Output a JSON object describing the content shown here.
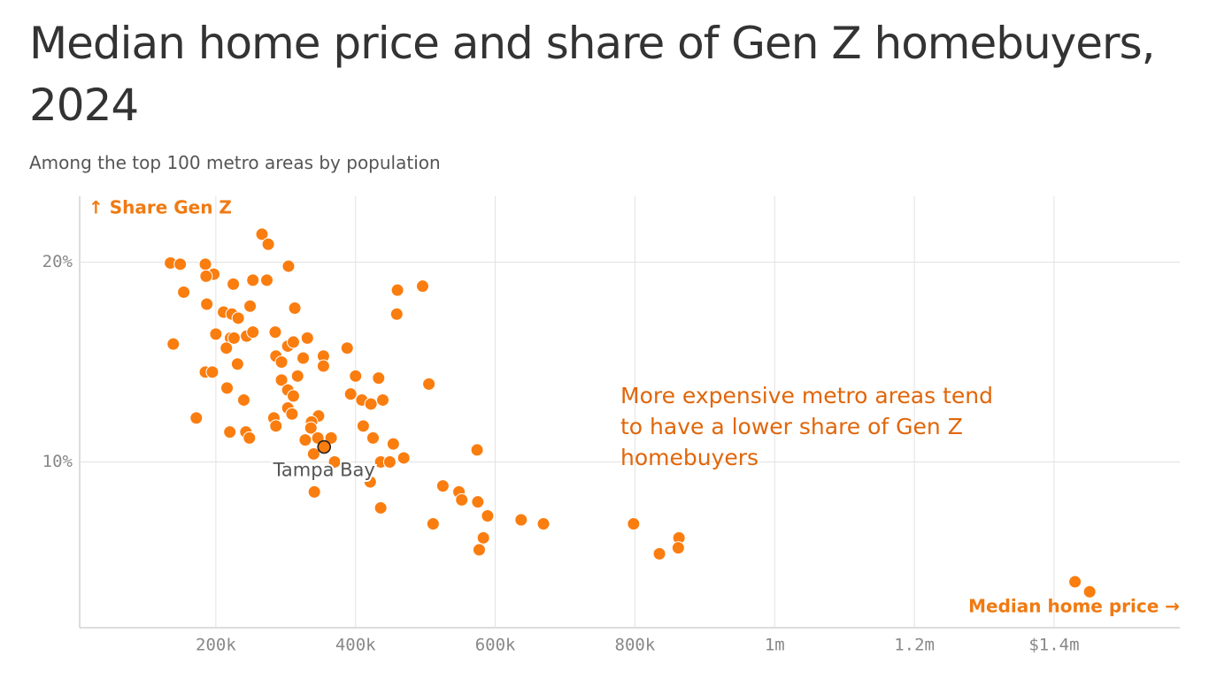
{
  "chart_data": {
    "type": "scatter",
    "title": "Median home price and share of Gen Z homebuyers, 2024",
    "subtitle": "Among the top 100 metro areas by population",
    "y_label": "↑ Share Gen Z",
    "x_label": "Median home price →",
    "note": "More expensive metro areas tend to have a lower share of Gen Z homebuyers",
    "color": "#fa7d0f",
    "x": [
      135000,
      139000,
      154000,
      149000,
      185000,
      197000,
      186000,
      225000,
      253000,
      273000,
      266000,
      275000,
      304000,
      187000,
      211000,
      223000,
      232000,
      249000,
      313000,
      200000,
      221000,
      226000,
      244000,
      253000,
      285000,
      215000,
      303000,
      311000,
      331000,
      388000,
      286000,
      294000,
      325000,
      354000,
      354000,
      231000,
      185000,
      195000,
      317000,
      294000,
      400000,
      433000,
      460000,
      496000,
      459000,
      505000,
      216000,
      303000,
      311000,
      240000,
      393000,
      409000,
      422000,
      439000,
      303000,
      309000,
      172000,
      283000,
      347000,
      337000,
      286000,
      336000,
      411000,
      220000,
      243000,
      248000,
      328000,
      346000,
      365000,
      425000,
      454000,
      340000,
      574000,
      436000,
      449000,
      469000,
      370000,
      421000,
      341000,
      525000,
      548000,
      552000,
      575000,
      589000,
      436000,
      637000,
      669000,
      511000,
      583000,
      577000,
      798000,
      863000,
      862000,
      835000,
      1430000,
      1451000
    ],
    "values": [
      19.96,
      15.9,
      18.5,
      19.9,
      19.9,
      19.4,
      19.3,
      18.9,
      19.1,
      19.1,
      21.4,
      20.9,
      19.8,
      17.9,
      17.5,
      17.4,
      17.2,
      17.8,
      17.7,
      16.4,
      16.2,
      16.2,
      16.3,
      16.5,
      16.5,
      15.7,
      15.8,
      16.0,
      16.2,
      15.7,
      15.3,
      15.0,
      15.2,
      15.3,
      14.8,
      14.9,
      14.5,
      14.5,
      14.3,
      14.1,
      14.3,
      14.2,
      18.6,
      18.8,
      17.4,
      13.9,
      13.7,
      13.6,
      13.3,
      13.1,
      13.4,
      13.1,
      12.9,
      13.1,
      12.7,
      12.4,
      12.2,
      12.2,
      12.3,
      12.0,
      11.8,
      11.7,
      11.8,
      11.5,
      11.5,
      11.2,
      11.1,
      11.2,
      11.2,
      11.2,
      10.9,
      10.4,
      10.6,
      10.0,
      10.0,
      10.2,
      10.0,
      9.0,
      8.5,
      8.8,
      8.5,
      8.1,
      8.0,
      7.3,
      7.7,
      7.1,
      6.9,
      6.9,
      6.2,
      5.6,
      6.9,
      6.2,
      5.7,
      5.4,
      4.0,
      3.5
    ],
    "annotations": [
      {
        "text": "Tampa Bay",
        "x": 355000,
        "y": 10.75
      }
    ],
    "xlim": [
      5000,
      1580000
    ],
    "ylim": [
      1.7,
      23.3
    ],
    "xticks": [
      {
        "value": 200000,
        "label": "200k"
      },
      {
        "value": 400000,
        "label": "400k"
      },
      {
        "value": 600000,
        "label": "600k"
      },
      {
        "value": 800000,
        "label": "800k"
      },
      {
        "value": 1000000,
        "label": "1m"
      },
      {
        "value": 1200000,
        "label": "1.2m"
      },
      {
        "value": 1400000,
        "label": "$1.4m"
      }
    ],
    "yticks": [
      {
        "value": 10,
        "label": "10%"
      },
      {
        "value": 20,
        "label": "20%"
      }
    ],
    "grid": true
  }
}
